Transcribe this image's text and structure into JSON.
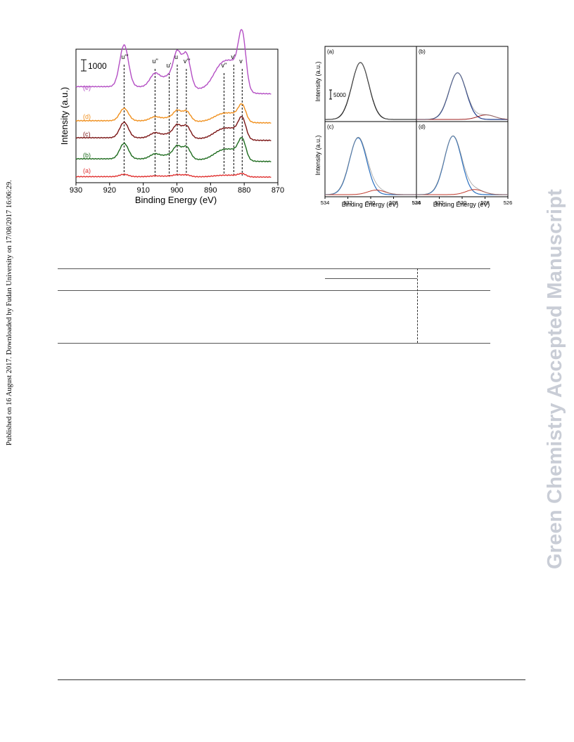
{
  "side_note": "Published on 16 August 2017. Downloaded by Fudan University on 17/08/2017 16:06:29.",
  "watermark": "Green Chemistry Accepted Manuscript",
  "chart_data": [
    {
      "type": "line",
      "xlabel": "Binding Energy (eV)",
      "ylabel": "Intensity (a.u.)",
      "xlim": [
        930,
        870
      ],
      "x_ticks": [
        "930",
        "920",
        "910",
        "900",
        "890",
        "880",
        "870"
      ],
      "scale_bar": "1000",
      "peak_labels": [
        {
          "label": "u'''",
          "x": 915.7
        },
        {
          "label": "u''",
          "x": 906.5
        },
        {
          "label": "u'",
          "x": 902.3
        },
        {
          "label": "u",
          "x": 899.9
        },
        {
          "label": "v'''",
          "x": 897.2
        },
        {
          "label": "v''",
          "x": 886.0
        },
        {
          "label": "v'",
          "x": 883.1
        },
        {
          "label": "v",
          "x": 880.6
        }
      ],
      "series": [
        {
          "name": "(a)",
          "color": "#e0302f",
          "offset": 0,
          "amp": 0.15
        },
        {
          "name": "(b)",
          "color": "#1e6b1e",
          "offset": 22,
          "amp": 1.0
        },
        {
          "name": "(c)",
          "color": "#7a1414",
          "offset": 52,
          "amp": 1.0
        },
        {
          "name": "(d)",
          "color": "#f0901e",
          "offset": 77,
          "amp": 0.8
        },
        {
          "name": "(e)",
          "color": "#b44fc4",
          "offset": 118,
          "amp": 2.7
        }
      ]
    },
    {
      "type": "line",
      "xlabel": "Binding Energy (eV)",
      "ylabel": "Intensity (a.u.)",
      "xlim": [
        534,
        526
      ],
      "x_ticks": [
        "534",
        "532",
        "530",
        "528",
        "526"
      ],
      "scale_bar": "5000",
      "panels": [
        {
          "label": "(a)",
          "peaks": [
            {
              "center": 530.9,
              "height": 1.0,
              "color": "#000000"
            }
          ]
        },
        {
          "label": "(b)",
          "peaks": [
            {
              "center": 530.4,
              "height": 0.82,
              "color": "#1f3b8a"
            },
            {
              "center": 527.9,
              "height": 0.08,
              "color": "#9b1b1b"
            }
          ]
        },
        {
          "label": "(c)",
          "peaks": [
            {
              "center": 531.1,
              "height": 1.0,
              "color": "#2a6fbf"
            },
            {
              "center": 529.5,
              "height": 0.08,
              "color": "#c0392b"
            }
          ]
        },
        {
          "label": "(d)",
          "peaks": [
            {
              "center": 530.8,
              "height": 1.03,
              "color": "#2a6fbf"
            },
            {
              "center": 528.9,
              "height": 0.09,
              "color": "#c0392b"
            }
          ]
        }
      ]
    }
  ]
}
